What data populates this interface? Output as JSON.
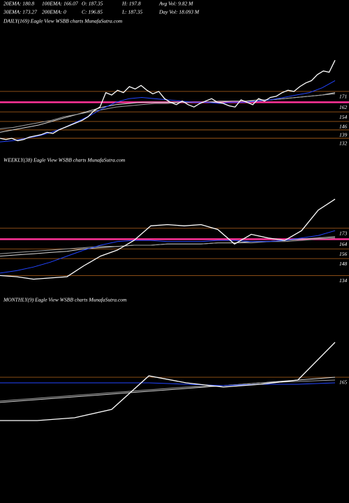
{
  "header": {
    "rows": [
      [
        "20EMA: 180.8",
        "100EMA: 166.07",
        "O: 187.35",
        "H: 197.8",
        "Avg Vol: 9.82  M"
      ],
      [
        "30EMA: 173.27",
        "200EMA: 0",
        "C: 196.85",
        "L: 187.35",
        "Day Vol: 18.093  M"
      ]
    ]
  },
  "chart_data": [
    {
      "type": "line",
      "title": "DAILY(169) Eagle  View  WSBB charts MunafaSutra.com",
      "ylim": [
        125,
        225
      ],
      "yticks": [
        171,
        162,
        154,
        146,
        139,
        132
      ],
      "grid": true,
      "grid_colors": [
        "#b5651d",
        "#ff3399",
        "#b5651d",
        "#b5651d",
        "#b5651d",
        "#b5651d"
      ],
      "series": [
        {
          "color": "#d8d8d8",
          "values": [
            137,
            139,
            141,
            143,
            146,
            149,
            152,
            155,
            158,
            160,
            161,
            162,
            162,
            162,
            162,
            162,
            162,
            162,
            163,
            163,
            163,
            164,
            165,
            166,
            167,
            168,
            170
          ]
        },
        {
          "color": "#a0a0a0",
          "values": [
            140,
            141,
            143,
            145,
            147,
            150,
            152,
            154,
            156,
            158,
            159,
            160,
            161,
            161,
            162,
            162,
            162,
            163,
            163,
            163,
            164,
            164,
            165,
            166,
            167,
            168,
            169
          ]
        },
        {
          "color": "#2244ff",
          "values": [
            129,
            130,
            132,
            134,
            137,
            141,
            146,
            151,
            157,
            162,
            165,
            166,
            165,
            164,
            163,
            162,
            162,
            161,
            162,
            162,
            163,
            164,
            166,
            168,
            170,
            174,
            180
          ]
        },
        {
          "color": "#ffffff",
          "values": [
            132,
            131,
            132,
            130,
            131,
            133,
            134,
            135,
            137,
            136,
            139,
            141,
            143,
            145,
            147,
            150,
            155,
            158,
            170,
            168,
            172,
            170,
            175,
            173,
            176,
            172,
            169,
            171,
            165,
            162,
            160,
            163,
            160,
            158,
            161,
            163,
            165,
            162,
            161,
            159,
            158,
            164,
            162,
            160,
            165,
            163,
            166,
            167,
            170,
            172,
            171,
            175,
            178,
            180,
            185,
            188,
            187,
            197
          ]
        }
      ]
    },
    {
      "type": "line",
      "title": "WEEKLY(38) Eagle  View  WSBB charts MunafaSutra.com",
      "ylim": [
        125,
        223
      ],
      "yticks": [
        173,
        164,
        156,
        148,
        134
      ],
      "grid": true,
      "grid_colors": [
        "#b5651d",
        "#ff3399",
        "#b5651d",
        "#b5651d",
        "#b5651d"
      ],
      "series": [
        {
          "color": "#d8d8d8",
          "values": [
            150,
            151,
            152,
            153,
            154,
            156,
            157,
            158,
            159,
            159,
            160,
            160,
            160,
            161,
            161,
            162,
            162,
            163,
            164,
            165,
            166
          ]
        },
        {
          "color": "#a0a0a0",
          "values": [
            152,
            153,
            154,
            155,
            156,
            157,
            158,
            158,
            159,
            159,
            160,
            160,
            160,
            161,
            161,
            161,
            162,
            162,
            163,
            164,
            165
          ]
        },
        {
          "color": "#2244ff",
          "values": [
            136,
            138,
            141,
            145,
            150,
            155,
            159,
            162,
            163,
            163,
            162,
            162,
            162,
            163,
            163,
            162,
            162,
            163,
            165,
            167,
            171
          ]
        },
        {
          "color": "#ffffff",
          "values": [
            134,
            133,
            131,
            132,
            133,
            142,
            150,
            155,
            163,
            175,
            176,
            175,
            176,
            172,
            160,
            168,
            165,
            163,
            171,
            188,
            197
          ]
        }
      ]
    },
    {
      "type": "line",
      "title": "MONTHLY(9) Eagle  View  WSBB charts MunafaSutra.com",
      "ylim": [
        80,
        215
      ],
      "yticks": [
        165
      ],
      "grid": true,
      "grid_colors": [
        "#b5651d"
      ],
      "series": [
        {
          "color": "#d8d8d8",
          "values": [
            147,
            149,
            151,
            153,
            155,
            157,
            159,
            161,
            163,
            165
          ]
        },
        {
          "color": "#a0a0a0",
          "values": [
            148,
            150,
            152,
            154,
            156,
            158,
            159,
            161,
            162,
            163
          ]
        },
        {
          "color": "#2244ff",
          "values": [
            161,
            161,
            161,
            161,
            161,
            160,
            159,
            160,
            160,
            161
          ]
        },
        {
          "color": "#ffffff",
          "values": [
            134,
            134,
            136,
            142,
            166,
            161,
            158,
            160,
            163,
            190
          ]
        }
      ]
    }
  ]
}
